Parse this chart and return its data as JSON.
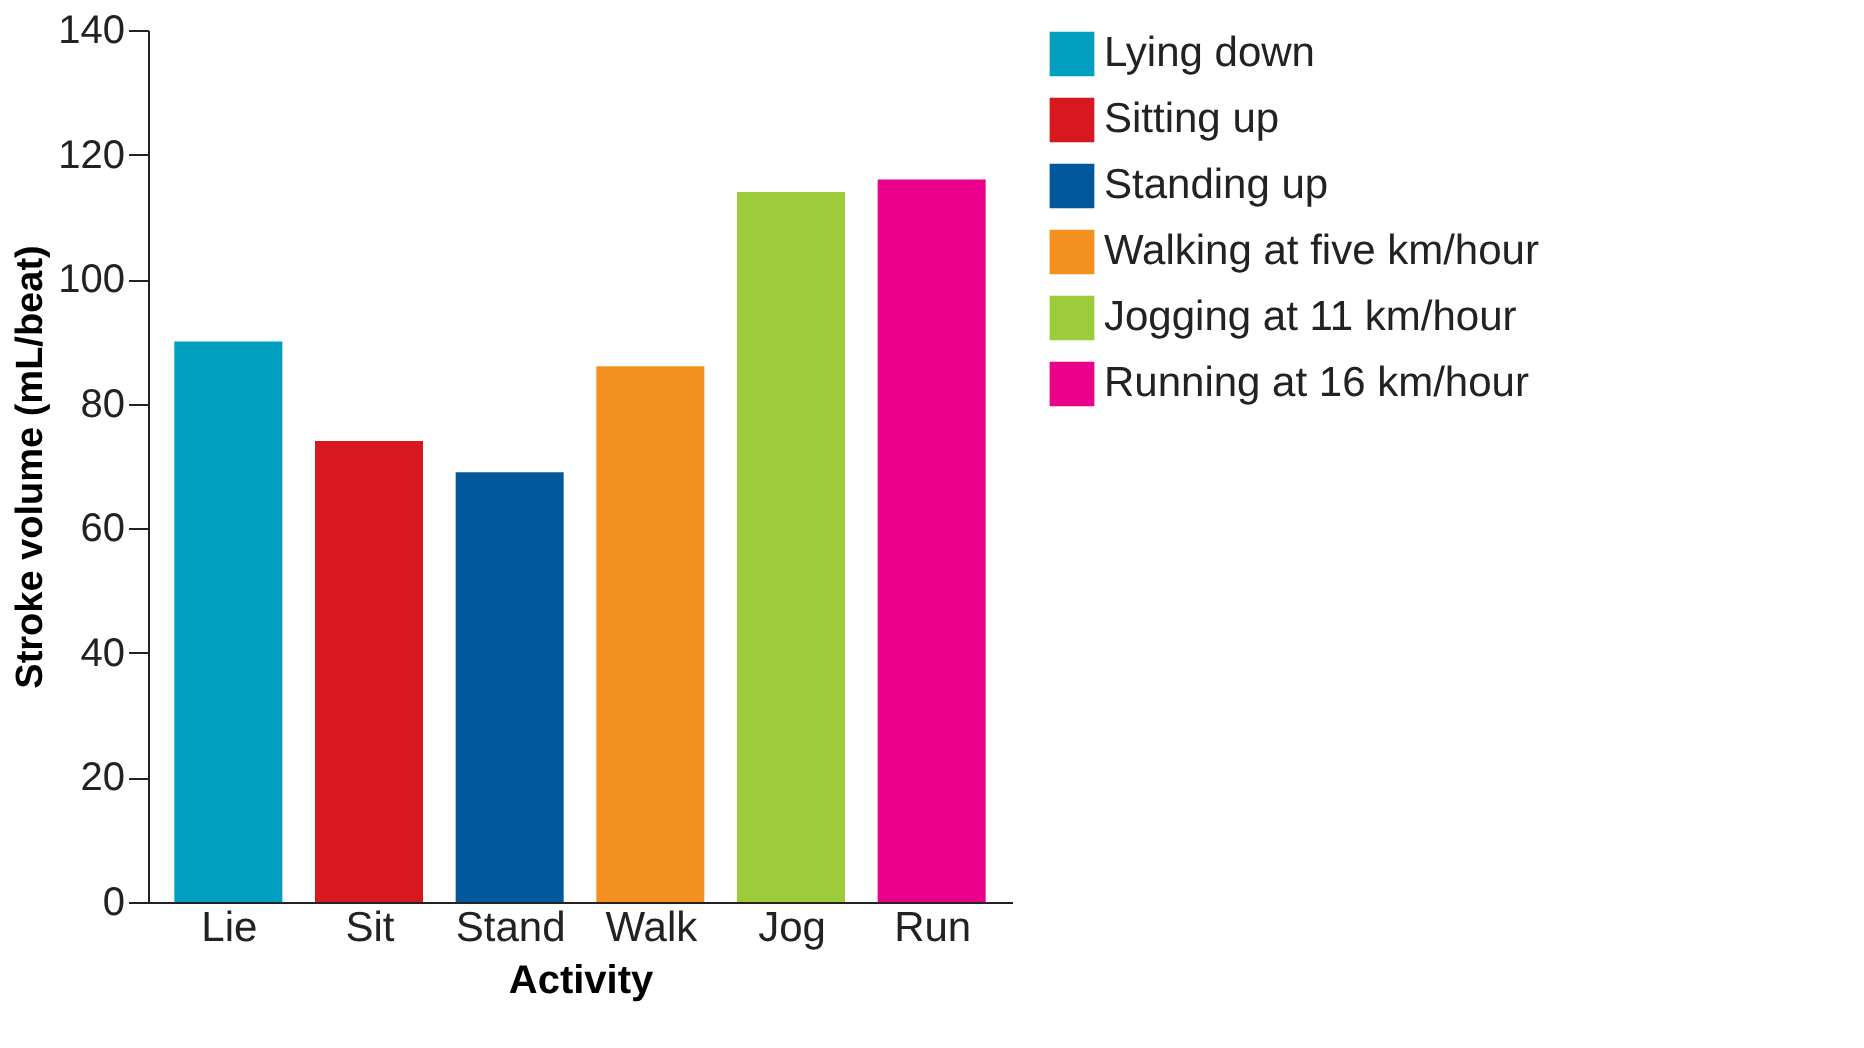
{
  "chart_data": {
    "type": "bar",
    "xlabel": "Activity",
    "ylabel": "Stroke volume (mL/beat)",
    "categories": [
      "Lie",
      "Sit",
      "Stand",
      "Walk",
      "Jog",
      "Run"
    ],
    "series": [
      {
        "name": "Lying down",
        "color": "#009fbf",
        "values": [
          90,
          null,
          null,
          null,
          null,
          null
        ]
      },
      {
        "name": "Sitting up",
        "color": "#d7191f",
        "values": [
          null,
          74,
          null,
          null,
          null,
          null
        ]
      },
      {
        "name": "Standing up",
        "color": "#02589b",
        "values": [
          null,
          null,
          69,
          null,
          null,
          null
        ]
      },
      {
        "name": "Walking at five km/hour",
        "color": "#f39020",
        "values": [
          null,
          null,
          null,
          86,
          null,
          null
        ]
      },
      {
        "name": "Jogging at 11 km/hour",
        "color": "#9ccb3b",
        "values": [
          null,
          null,
          null,
          null,
          114,
          null
        ]
      },
      {
        "name": "Running at 16 km/hour",
        "color": "#eb008b",
        "values": [
          null,
          null,
          null,
          null,
          null,
          116
        ]
      }
    ],
    "ylim": [
      0,
      140
    ],
    "yticks": [
      0,
      20,
      40,
      60,
      80,
      100,
      120,
      140
    ],
    "grid": false,
    "legend": "right"
  }
}
